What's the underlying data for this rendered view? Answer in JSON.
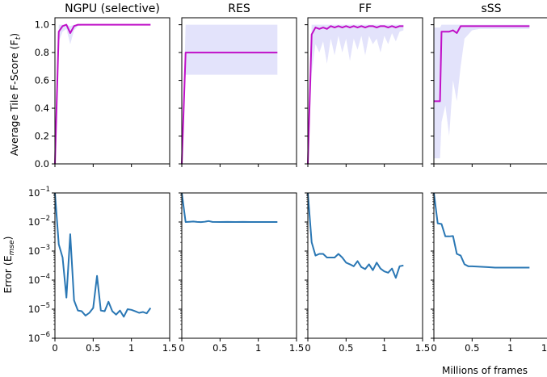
{
  "figure": {
    "xlabel": "Millions of frames",
    "ylabel_top": "Average Tile F-Score (F",
    "ylabel_top_sub": "t",
    "ylabel_top_close": ")",
    "ylabel_bottom": "Error (E",
    "ylabel_bottom_sub": "mse",
    "ylabel_bottom_close": ")"
  },
  "colors": {
    "fscore_line": "#c010c8",
    "fscore_band": "#e3e3fb",
    "error_line": "#2a77b4",
    "axis": "#000000"
  },
  "chart_data": [
    {
      "type": "line",
      "title": "NGPU (selective)",
      "row": "fscore",
      "xlim": [
        0,
        1.5
      ],
      "ylim": [
        0,
        1.05
      ],
      "xticks": [
        "0",
        "0.5",
        "1",
        "1.5"
      ],
      "yticks": [
        "0.0",
        "0.2",
        "0.4",
        "0.6",
        "0.8",
        "1.0"
      ],
      "series": [
        {
          "x": [
            0,
            0.05,
            0.1,
            0.15,
            0.2,
            0.25,
            0.3,
            0.4,
            0.5,
            0.6,
            0.7,
            0.8,
            0.9,
            1.0,
            1.1,
            1.2,
            1.25
          ],
          "y": [
            0.0,
            0.95,
            0.99,
            1.0,
            0.94,
            0.99,
            1.0,
            1.0,
            1.0,
            1.0,
            1.0,
            1.0,
            1.0,
            1.0,
            1.0,
            1.0,
            1.0
          ],
          "lower": [
            0.0,
            0.88,
            0.95,
            0.97,
            0.86,
            0.96,
            0.99,
            1.0,
            1.0,
            1.0,
            1.0,
            1.0,
            1.0,
            1.0,
            1.0,
            1.0,
            1.0
          ],
          "upper": [
            0.02,
            1.0,
            1.0,
            1.0,
            0.99,
            1.0,
            1.0,
            1.0,
            1.0,
            1.0,
            1.0,
            1.0,
            1.0,
            1.0,
            1.0,
            1.0,
            1.0
          ]
        }
      ]
    },
    {
      "type": "line",
      "title": "RES",
      "row": "fscore",
      "xlim": [
        0,
        1.5
      ],
      "ylim": [
        0,
        1.05
      ],
      "xticks": [
        "0",
        "0.5",
        "1",
        "1.5"
      ],
      "yticks": [
        "0.0",
        "0.2",
        "0.4",
        "0.6",
        "0.8",
        "1.0"
      ],
      "series": [
        {
          "x": [
            0,
            0.05,
            0.1,
            0.2,
            0.4,
            0.6,
            0.8,
            1.0,
            1.25
          ],
          "y": [
            0.0,
            0.8,
            0.8,
            0.8,
            0.8,
            0.8,
            0.8,
            0.8,
            0.8
          ],
          "lower": [
            0.0,
            0.64,
            0.64,
            0.64,
            0.64,
            0.64,
            0.64,
            0.64,
            0.64
          ],
          "upper": [
            0.0,
            1.0,
            1.0,
            1.0,
            1.0,
            1.0,
            1.0,
            1.0,
            1.0
          ]
        }
      ]
    },
    {
      "type": "line",
      "title": "FF",
      "row": "fscore",
      "xlim": [
        0,
        1.5
      ],
      "ylim": [
        0,
        1.05
      ],
      "xticks": [
        "0",
        "0.5",
        "1",
        "1.5"
      ],
      "yticks": [
        "0.0",
        "0.2",
        "0.4",
        "0.6",
        "0.8",
        "1.0"
      ],
      "series": [
        {
          "x": [
            0,
            0.05,
            0.1,
            0.15,
            0.2,
            0.25,
            0.3,
            0.35,
            0.4,
            0.45,
            0.5,
            0.55,
            0.6,
            0.65,
            0.7,
            0.75,
            0.8,
            0.85,
            0.9,
            0.95,
            1.0,
            1.05,
            1.1,
            1.15,
            1.2,
            1.25
          ],
          "y": [
            0.0,
            0.93,
            0.98,
            0.97,
            0.98,
            0.97,
            0.99,
            0.98,
            0.99,
            0.98,
            0.99,
            0.98,
            0.99,
            0.98,
            0.99,
            0.98,
            0.99,
            0.99,
            0.98,
            0.99,
            0.99,
            0.98,
            0.99,
            0.98,
            0.99,
            0.99
          ],
          "lower": [
            0.0,
            0.65,
            0.86,
            0.8,
            0.88,
            0.72,
            0.9,
            0.78,
            0.92,
            0.8,
            0.9,
            0.74,
            0.9,
            0.82,
            0.92,
            0.78,
            0.92,
            0.86,
            0.9,
            0.8,
            0.92,
            0.86,
            0.94,
            0.88,
            0.95,
            0.96
          ],
          "upper": [
            0.02,
            1.0,
            1.0,
            1.0,
            1.0,
            1.0,
            1.0,
            1.0,
            1.0,
            1.0,
            1.0,
            1.0,
            1.0,
            1.0,
            1.0,
            1.0,
            1.0,
            1.0,
            1.0,
            1.0,
            1.0,
            1.0,
            1.0,
            1.0,
            1.0,
            1.0
          ]
        }
      ]
    },
    {
      "type": "line",
      "title": "sSS",
      "row": "fscore",
      "xlim": [
        0,
        1.5
      ],
      "ylim": [
        0,
        1.05
      ],
      "xticks": [
        "0",
        "0.5",
        "1",
        "1.5"
      ],
      "yticks": [
        "0.0",
        "0.2",
        "0.4",
        "0.6",
        "0.8",
        "1.0"
      ],
      "series": [
        {
          "x": [
            0,
            0.08,
            0.1,
            0.15,
            0.2,
            0.25,
            0.3,
            0.35,
            0.4,
            0.5,
            0.6,
            0.8,
            1.0,
            1.25
          ],
          "y": [
            0.45,
            0.45,
            0.95,
            0.95,
            0.95,
            0.96,
            0.94,
            0.99,
            0.99,
            0.99,
            0.99,
            0.99,
            0.99,
            0.99
          ],
          "lower": [
            0.04,
            0.04,
            0.3,
            0.42,
            0.2,
            0.6,
            0.45,
            0.7,
            0.9,
            0.96,
            0.97,
            0.97,
            0.97,
            0.97
          ],
          "upper": [
            0.98,
            0.98,
            1.0,
            1.0,
            1.0,
            1.0,
            1.0,
            1.0,
            1.0,
            1.0,
            1.0,
            1.0,
            1.0,
            1.0
          ]
        }
      ]
    },
    {
      "type": "line",
      "row": "error",
      "xlim": [
        0,
        1.5
      ],
      "ylim": [
        1e-06,
        0.1
      ],
      "yscale": "log",
      "xticks": [
        "0",
        "0.5",
        "1",
        "1.5"
      ],
      "yticks": [
        "10^-6",
        "10^-5",
        "10^-4",
        "10^-3",
        "10^-2",
        "10^-1"
      ],
      "series": [
        {
          "x": [
            0,
            0.05,
            0.1,
            0.15,
            0.2,
            0.25,
            0.3,
            0.35,
            0.4,
            0.45,
            0.5,
            0.55,
            0.6,
            0.65,
            0.7,
            0.75,
            0.8,
            0.85,
            0.9,
            0.95,
            1.0,
            1.05,
            1.1,
            1.15,
            1.2,
            1.25
          ],
          "y": [
            0.1,
            0.0017,
            0.0006,
            2.5e-05,
            0.0038,
            2e-05,
            9e-06,
            8.5e-06,
            6e-06,
            7.5e-06,
            1.1e-05,
            0.00014,
            9e-06,
            8.5e-06,
            1.8e-05,
            8.5e-06,
            6.5e-06,
            9e-06,
            5.5e-06,
            1e-05,
            9.5e-06,
            8.5e-06,
            7.5e-06,
            8e-06,
            7.2e-06,
            1.1e-05
          ]
        }
      ]
    },
    {
      "type": "line",
      "row": "error",
      "xlim": [
        0,
        1.5
      ],
      "ylim": [
        1e-06,
        0.1
      ],
      "yscale": "log",
      "xticks": [
        "0",
        "0.5",
        "1",
        "1.5"
      ],
      "yticks": [
        "10^-6",
        "10^-5",
        "10^-4",
        "10^-3",
        "10^-2",
        "10^-1"
      ],
      "series": [
        {
          "x": [
            0,
            0.05,
            0.1,
            0.15,
            0.2,
            0.25,
            0.3,
            0.35,
            0.4,
            0.5,
            0.6,
            0.7,
            0.8,
            0.9,
            1.0,
            1.1,
            1.25
          ],
          "y": [
            0.1,
            0.01,
            0.0102,
            0.0104,
            0.0101,
            0.0099,
            0.0102,
            0.0108,
            0.0101,
            0.01,
            0.0101,
            0.01,
            0.0101,
            0.01,
            0.01,
            0.01,
            0.01
          ]
        }
      ]
    },
    {
      "type": "line",
      "row": "error",
      "xlim": [
        0,
        1.5
      ],
      "ylim": [
        1e-06,
        0.1
      ],
      "yscale": "log",
      "xticks": [
        "0",
        "0.5",
        "1",
        "1.5"
      ],
      "yticks": [
        "10^-6",
        "10^-5",
        "10^-4",
        "10^-3",
        "10^-2",
        "10^-1"
      ],
      "series": [
        {
          "x": [
            0,
            0.05,
            0.1,
            0.15,
            0.2,
            0.25,
            0.3,
            0.35,
            0.4,
            0.45,
            0.5,
            0.55,
            0.6,
            0.65,
            0.7,
            0.75,
            0.8,
            0.85,
            0.9,
            0.95,
            1.0,
            1.05,
            1.1,
            1.15,
            1.2,
            1.25
          ],
          "y": [
            0.1,
            0.002,
            0.0007,
            0.0008,
            0.0008,
            0.0006,
            0.0006,
            0.0006,
            0.0008,
            0.0006,
            0.0004,
            0.00035,
            0.0003,
            0.00045,
            0.00028,
            0.00024,
            0.00035,
            0.00022,
            0.0004,
            0.00025,
            0.0002,
            0.00018,
            0.00025,
            0.00012,
            0.0003,
            0.00032
          ]
        }
      ]
    },
    {
      "type": "line",
      "row": "error",
      "xlim": [
        0,
        1.5
      ],
      "ylim": [
        1e-06,
        0.1
      ],
      "yscale": "log",
      "xticks": [
        "0",
        "0.5",
        "1",
        "1.5"
      ],
      "yticks": [
        "10^-6",
        "10^-5",
        "10^-4",
        "10^-3",
        "10^-2",
        "10^-1"
      ],
      "series": [
        {
          "x": [
            0,
            0.05,
            0.1,
            0.15,
            0.2,
            0.25,
            0.3,
            0.35,
            0.4,
            0.45,
            0.5,
            0.6,
            0.7,
            0.8,
            0.9,
            1.0,
            1.1,
            1.25
          ],
          "y": [
            0.1,
            0.009,
            0.0085,
            0.0032,
            0.0032,
            0.0033,
            0.0008,
            0.0007,
            0.00035,
            0.0003,
            0.0003,
            0.00029,
            0.00028,
            0.00027,
            0.00027,
            0.00027,
            0.00027,
            0.00027
          ]
        }
      ]
    }
  ]
}
